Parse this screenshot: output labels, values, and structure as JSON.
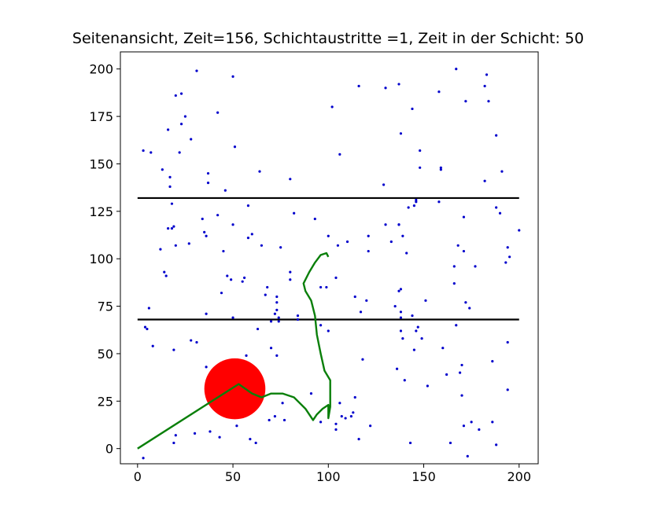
{
  "chart_data": {
    "type": "scatter",
    "title": "Seitenansicht, Zeit=156, Schichtaustritte =1, Zeit in der Schicht: 50",
    "xlabel": "",
    "ylabel": "",
    "xlim": [
      -9,
      210
    ],
    "ylim": [
      -8,
      209
    ],
    "xticks": [
      0,
      50,
      100,
      150,
      200
    ],
    "yticks": [
      0,
      25,
      50,
      75,
      100,
      125,
      150,
      175,
      200
    ],
    "grid": false,
    "colors": {
      "points": "#0000cc",
      "lines": "#000000",
      "path": "#0a7f0a",
      "circle": "#ff0000"
    },
    "layer_boundaries": [
      {
        "y": 132,
        "x_start": 0,
        "x_end": 200
      },
      {
        "y": 68,
        "x_start": 0,
        "x_end": 200
      }
    ],
    "circle": {
      "cx": 51,
      "cy": 31.5,
      "r": 16
    },
    "path": [
      [
        0,
        0
      ],
      [
        53,
        34
      ],
      [
        60,
        29
      ],
      [
        65,
        27
      ],
      [
        70,
        29
      ],
      [
        76,
        29
      ],
      [
        82,
        27
      ],
      [
        88,
        21
      ],
      [
        92,
        15
      ],
      [
        94,
        18
      ],
      [
        97,
        21
      ],
      [
        100,
        23
      ],
      [
        100,
        18
      ],
      [
        100,
        16
      ],
      [
        101,
        22
      ],
      [
        101,
        36
      ],
      [
        98,
        41
      ],
      [
        96,
        50
      ],
      [
        94,
        60
      ],
      [
        93,
        70
      ],
      [
        91,
        78
      ],
      [
        88,
        83
      ],
      [
        87,
        87
      ],
      [
        90,
        93
      ],
      [
        93,
        98
      ],
      [
        96,
        102
      ],
      [
        99,
        103
      ],
      [
        100,
        101
      ]
    ],
    "points": [
      [
        3,
        -5
      ],
      [
        3,
        157
      ],
      [
        4,
        64
      ],
      [
        5,
        63
      ],
      [
        6,
        74
      ],
      [
        7,
        156
      ],
      [
        8,
        54
      ],
      [
        12,
        105
      ],
      [
        13,
        147
      ],
      [
        14,
        93
      ],
      [
        15,
        91
      ],
      [
        16,
        168
      ],
      [
        16,
        116
      ],
      [
        17,
        138
      ],
      [
        17,
        143
      ],
      [
        18,
        129
      ],
      [
        18,
        116
      ],
      [
        19,
        3
      ],
      [
        19,
        117
      ],
      [
        19,
        52
      ],
      [
        20,
        186
      ],
      [
        20,
        107
      ],
      [
        20,
        7
      ],
      [
        22,
        156
      ],
      [
        23,
        171
      ],
      [
        23,
        187
      ],
      [
        25,
        175
      ],
      [
        27,
        108
      ],
      [
        28,
        163
      ],
      [
        28,
        57
      ],
      [
        30,
        8
      ],
      [
        31,
        199
      ],
      [
        31,
        56
      ],
      [
        34,
        121
      ],
      [
        35,
        114
      ],
      [
        36,
        112
      ],
      [
        36,
        43
      ],
      [
        36,
        71
      ],
      [
        37,
        140
      ],
      [
        37,
        145
      ],
      [
        38,
        9
      ],
      [
        40,
        40
      ],
      [
        42,
        123
      ],
      [
        42,
        177
      ],
      [
        43,
        6
      ],
      [
        44,
        82
      ],
      [
        45,
        104
      ],
      [
        46,
        136
      ],
      [
        47,
        91
      ],
      [
        47,
        43
      ],
      [
        49,
        89
      ],
      [
        50,
        69
      ],
      [
        50,
        196
      ],
      [
        50,
        118
      ],
      [
        51,
        159
      ],
      [
        52,
        12
      ],
      [
        54,
        39
      ],
      [
        55,
        88
      ],
      [
        56,
        90
      ],
      [
        57,
        49
      ],
      [
        58,
        111
      ],
      [
        58,
        128
      ],
      [
        59,
        5
      ],
      [
        60,
        113
      ],
      [
        61,
        23
      ],
      [
        62,
        31
      ],
      [
        62,
        3
      ],
      [
        63,
        63
      ],
      [
        64,
        146
      ],
      [
        65,
        107
      ],
      [
        67,
        81
      ],
      [
        68,
        85
      ],
      [
        69,
        15
      ],
      [
        70,
        67
      ],
      [
        70,
        53
      ],
      [
        72,
        17
      ],
      [
        72,
        71
      ],
      [
        73,
        80
      ],
      [
        73,
        77
      ],
      [
        73,
        73
      ],
      [
        73,
        49
      ],
      [
        74,
        69
      ],
      [
        74,
        67
      ],
      [
        75,
        106
      ],
      [
        76,
        24
      ],
      [
        77,
        15
      ],
      [
        80,
        142
      ],
      [
        80,
        93
      ],
      [
        80,
        89
      ],
      [
        82,
        124
      ],
      [
        84,
        68
      ],
      [
        84,
        70
      ],
      [
        91,
        29
      ],
      [
        93,
        121
      ],
      [
        96,
        65
      ],
      [
        96,
        14
      ],
      [
        96,
        85
      ],
      [
        99,
        85
      ],
      [
        100,
        112
      ],
      [
        100,
        62
      ],
      [
        102,
        180
      ],
      [
        104,
        10
      ],
      [
        104,
        90
      ],
      [
        104,
        13
      ],
      [
        105,
        107
      ],
      [
        106,
        155
      ],
      [
        106,
        24
      ],
      [
        107,
        17
      ],
      [
        109,
        16
      ],
      [
        110,
        109
      ],
      [
        112,
        17
      ],
      [
        113,
        19
      ],
      [
        114,
        27
      ],
      [
        114,
        80
      ],
      [
        116,
        5
      ],
      [
        116,
        191
      ],
      [
        117,
        72
      ],
      [
        118,
        47
      ],
      [
        120,
        78
      ],
      [
        121,
        112
      ],
      [
        121,
        104
      ],
      [
        122,
        12
      ],
      [
        129,
        139
      ],
      [
        130,
        118
      ],
      [
        130,
        190
      ],
      [
        133,
        109
      ],
      [
        135,
        75
      ],
      [
        136,
        42
      ],
      [
        137,
        192
      ],
      [
        137,
        118
      ],
      [
        137,
        83
      ],
      [
        137,
        118
      ],
      [
        138,
        166
      ],
      [
        138,
        84
      ],
      [
        138,
        69
      ],
      [
        138,
        62
      ],
      [
        138,
        72
      ],
      [
        139,
        58
      ],
      [
        139,
        112
      ],
      [
        140,
        36
      ],
      [
        141,
        103
      ],
      [
        142,
        127
      ],
      [
        143,
        3
      ],
      [
        144,
        179
      ],
      [
        144,
        70
      ],
      [
        145,
        128
      ],
      [
        145,
        52
      ],
      [
        146,
        62
      ],
      [
        146,
        130
      ],
      [
        146,
        131
      ],
      [
        147,
        64
      ],
      [
        148,
        148
      ],
      [
        148,
        157
      ],
      [
        149,
        58
      ],
      [
        151,
        78
      ],
      [
        152,
        33
      ],
      [
        158,
        188
      ],
      [
        158,
        130
      ],
      [
        159,
        148
      ],
      [
        159,
        147
      ],
      [
        160,
        53
      ],
      [
        162,
        39
      ],
      [
        164,
        3
      ],
      [
        166,
        87
      ],
      [
        166,
        96
      ],
      [
        167,
        200
      ],
      [
        167,
        65
      ],
      [
        168,
        107
      ],
      [
        169,
        40
      ],
      [
        170,
        44
      ],
      [
        170,
        28
      ],
      [
        171,
        12
      ],
      [
        171,
        122
      ],
      [
        171,
        104
      ],
      [
        172,
        183
      ],
      [
        172,
        77
      ],
      [
        173,
        -4
      ],
      [
        174,
        74
      ],
      [
        175,
        14
      ],
      [
        177,
        96
      ],
      [
        179,
        10
      ],
      [
        182,
        141
      ],
      [
        182,
        191
      ],
      [
        183,
        197
      ],
      [
        184,
        183
      ],
      [
        186,
        14
      ],
      [
        186,
        46
      ],
      [
        188,
        2
      ],
      [
        188,
        127
      ],
      [
        188,
        165
      ],
      [
        190,
        124
      ],
      [
        191,
        146
      ],
      [
        193,
        98
      ],
      [
        194,
        31
      ],
      [
        194,
        106
      ],
      [
        194,
        56
      ],
      [
        195,
        101
      ],
      [
        200,
        115
      ]
    ],
    "point_radius_px": 1.6
  }
}
